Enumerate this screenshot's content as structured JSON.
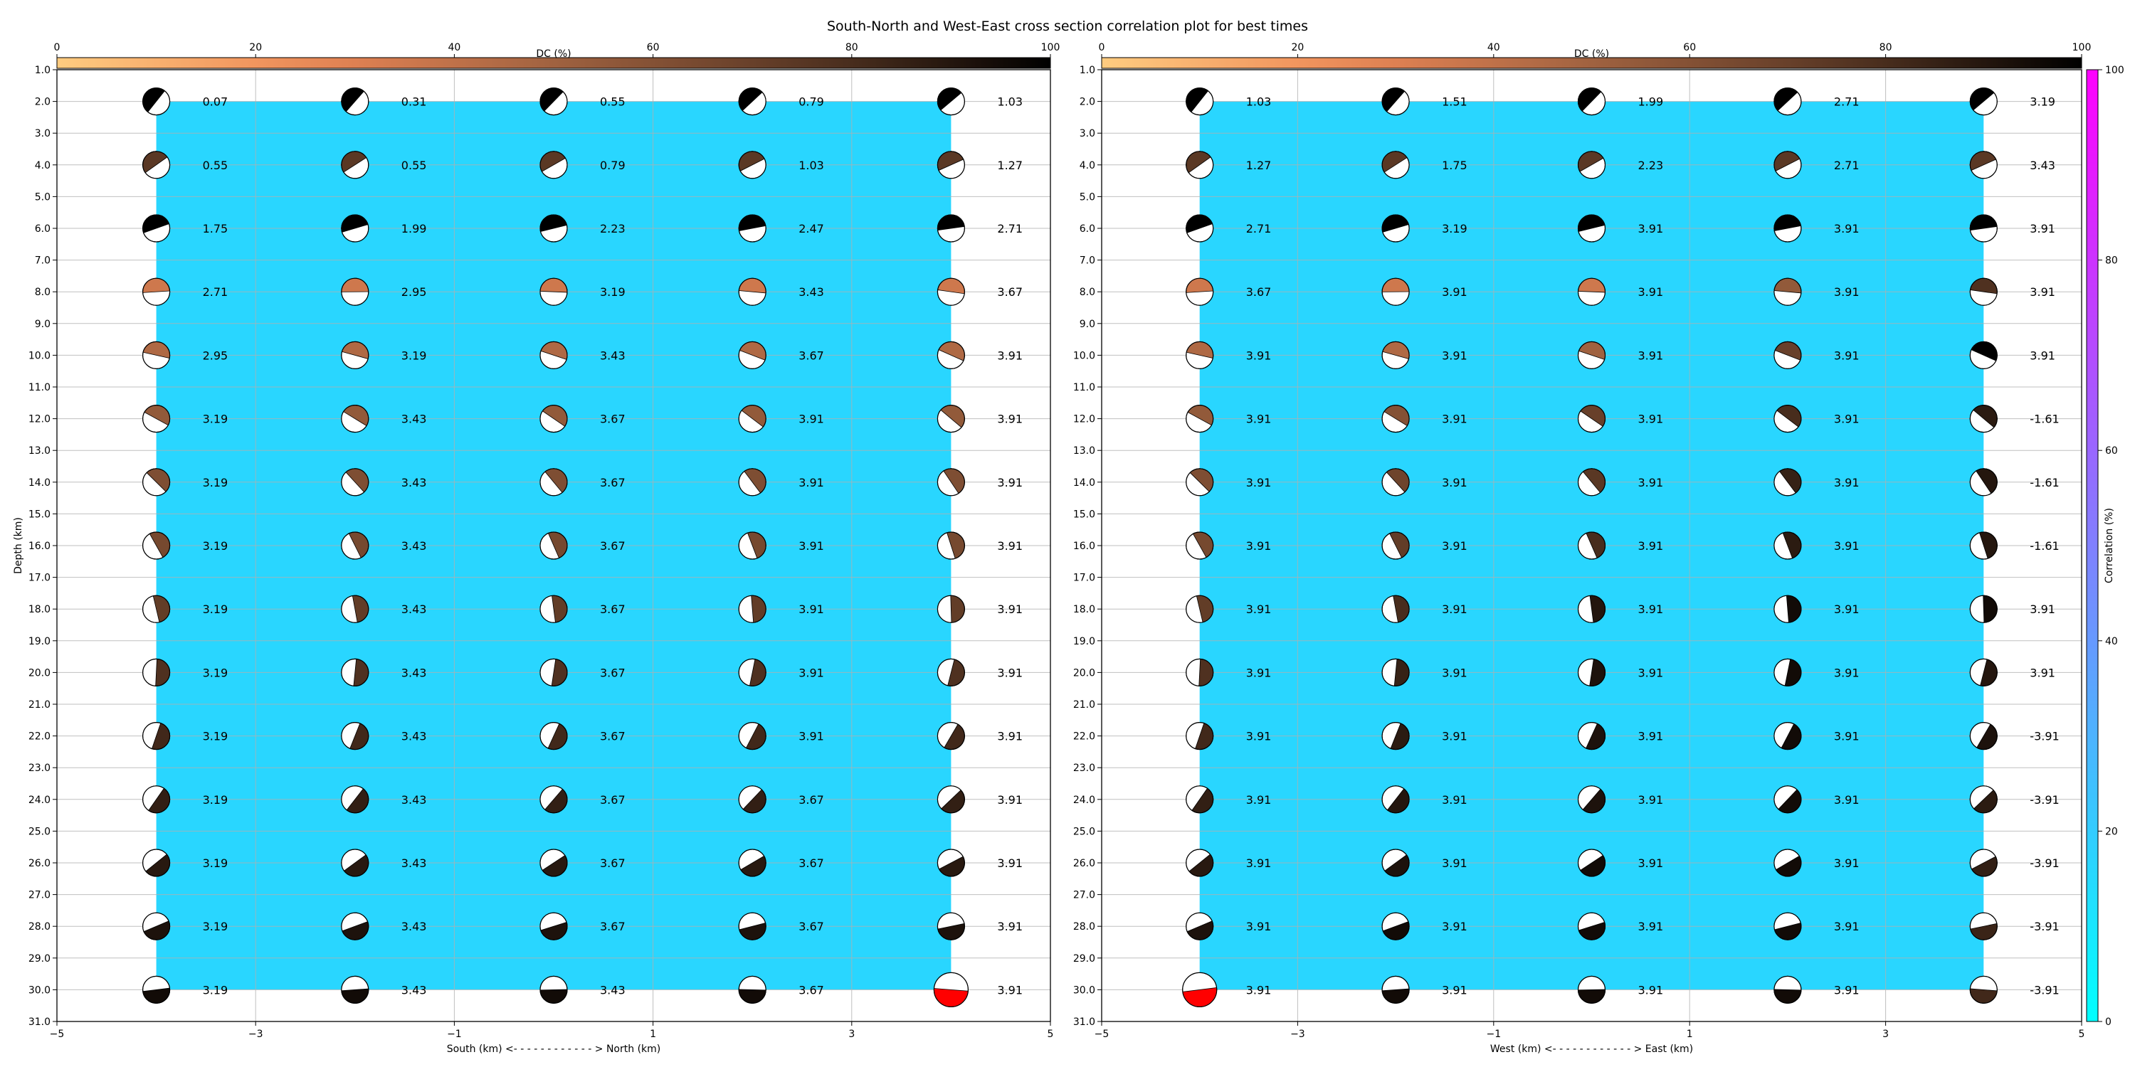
{
  "title": "South-North and West-East cross section correlation plot for best times",
  "colors": {
    "correlation_fill": "#29d6ff",
    "best_solution": "#ff0000",
    "grid": "#b0b0b0"
  },
  "chart_data": [
    {
      "type": "scatter",
      "name": "south-north",
      "xlabel": "South (km) <- - - - - - - - - - - - > North (km)",
      "ylabel": "Depth (km)",
      "xlim": [
        -5,
        5
      ],
      "ylim": [
        31,
        1
      ],
      "x_ticks": [
        "−5",
        "−3",
        "−1",
        "1",
        "3",
        "5"
      ],
      "y_ticks": [
        "1.0",
        "2.0",
        "3.0",
        "4.0",
        "5.0",
        "6.0",
        "7.0",
        "8.0",
        "9.0",
        "10.0",
        "11.0",
        "12.0",
        "13.0",
        "14.0",
        "15.0",
        "16.0",
        "17.0",
        "18.0",
        "19.0",
        "20.0",
        "21.0",
        "22.0",
        "23.0",
        "24.0",
        "25.0",
        "26.0",
        "27.0",
        "28.0",
        "29.0",
        "30.0",
        "31.0"
      ],
      "grid": true,
      "x": [
        -4,
        -2,
        0,
        2,
        4
      ],
      "depths": [
        2,
        4,
        6,
        8,
        10,
        12,
        14,
        16,
        18,
        20,
        22,
        24,
        26,
        28,
        30
      ],
      "correlation_percent": 20,
      "best_solution": {
        "x": 4,
        "depth": 30
      },
      "time_labels": [
        [
          "0.07",
          "0.31",
          "0.55",
          "0.79",
          "1.03"
        ],
        [
          "0.55",
          "0.55",
          "0.79",
          "1.03",
          "1.27"
        ],
        [
          "1.75",
          "1.99",
          "2.23",
          "2.47",
          "2.71"
        ],
        [
          "2.71",
          "2.95",
          "3.19",
          "3.43",
          "3.67"
        ],
        [
          "2.95",
          "3.19",
          "3.43",
          "3.67",
          "3.91"
        ],
        [
          "3.19",
          "3.43",
          "3.67",
          "3.91",
          "3.91"
        ],
        [
          "3.19",
          "3.43",
          "3.67",
          "3.91",
          "3.91"
        ],
        [
          "3.19",
          "3.43",
          "3.67",
          "3.91",
          "3.91"
        ],
        [
          "3.19",
          "3.43",
          "3.67",
          "3.91",
          "3.91"
        ],
        [
          "3.19",
          "3.43",
          "3.67",
          "3.91",
          "3.91"
        ],
        [
          "3.19",
          "3.43",
          "3.67",
          "3.91",
          "3.91"
        ],
        [
          "3.19",
          "3.43",
          "3.67",
          "3.67",
          "3.91"
        ],
        [
          "3.19",
          "3.43",
          "3.67",
          "3.67",
          "3.91"
        ],
        [
          "3.19",
          "3.43",
          "3.67",
          "3.67",
          "3.91"
        ],
        [
          "3.19",
          "3.43",
          "3.43",
          "3.67",
          "3.91"
        ]
      ],
      "dc_percent": [
        [
          100,
          100,
          100,
          100,
          100
        ],
        [
          75,
          75,
          75,
          75,
          75
        ],
        [
          100,
          100,
          100,
          100,
          100
        ],
        [
          35,
          35,
          35,
          35,
          35
        ],
        [
          45,
          45,
          45,
          45,
          45
        ],
        [
          55,
          55,
          55,
          55,
          55
        ],
        [
          62,
          62,
          62,
          62,
          62
        ],
        [
          65,
          65,
          65,
          65,
          65
        ],
        [
          72,
          72,
          72,
          72,
          72
        ],
        [
          78,
          78,
          78,
          78,
          78
        ],
        [
          82,
          82,
          82,
          82,
          82
        ],
        [
          86,
          86,
          86,
          86,
          86
        ],
        [
          89,
          89,
          89,
          89,
          89
        ],
        [
          92,
          92,
          92,
          92,
          92
        ],
        [
          95,
          95,
          95,
          95,
          0
        ]
      ],
      "dc_colorbar": {
        "label": "DC (%)",
        "ticks": [
          "0",
          "20",
          "40",
          "60",
          "80",
          "100"
        ],
        "range": [
          0,
          100
        ]
      }
    },
    {
      "type": "scatter",
      "name": "west-east",
      "xlabel": "West (km) <- - - - - - - - - - - - > East (km)",
      "xlim": [
        -5,
        5
      ],
      "ylim": [
        31,
        1
      ],
      "x_ticks": [
        "−5",
        "−3",
        "−1",
        "1",
        "3",
        "5"
      ],
      "y_ticks": [
        "1.0",
        "2.0",
        "3.0",
        "4.0",
        "5.0",
        "6.0",
        "7.0",
        "8.0",
        "9.0",
        "10.0",
        "11.0",
        "12.0",
        "13.0",
        "14.0",
        "15.0",
        "16.0",
        "17.0",
        "18.0",
        "19.0",
        "20.0",
        "21.0",
        "22.0",
        "23.0",
        "24.0",
        "25.0",
        "26.0",
        "27.0",
        "28.0",
        "29.0",
        "30.0",
        "31.0"
      ],
      "grid": true,
      "x": [
        -4,
        -2,
        0,
        2,
        4
      ],
      "depths": [
        2,
        4,
        6,
        8,
        10,
        12,
        14,
        16,
        18,
        20,
        22,
        24,
        26,
        28,
        30
      ],
      "correlation_percent": 20,
      "best_solution": {
        "x": -4,
        "depth": 30
      },
      "time_labels": [
        [
          "1.03",
          "1.51",
          "1.99",
          "2.71",
          "3.19"
        ],
        [
          "1.27",
          "1.75",
          "2.23",
          "2.71",
          "3.43"
        ],
        [
          "2.71",
          "3.19",
          "3.91",
          "3.91",
          "3.91"
        ],
        [
          "3.67",
          "3.91",
          "3.91",
          "3.91",
          "3.91"
        ],
        [
          "3.91",
          "3.91",
          "3.91",
          "3.91",
          "3.91"
        ],
        [
          "3.91",
          "3.91",
          "3.91",
          "3.91",
          "-1.61"
        ],
        [
          "3.91",
          "3.91",
          "3.91",
          "3.91",
          "-1.61"
        ],
        [
          "3.91",
          "3.91",
          "3.91",
          "3.91",
          "-1.61"
        ],
        [
          "3.91",
          "3.91",
          "3.91",
          "3.91",
          "3.91"
        ],
        [
          "3.91",
          "3.91",
          "3.91",
          "3.91",
          "3.91"
        ],
        [
          "3.91",
          "3.91",
          "3.91",
          "3.91",
          "-3.91"
        ],
        [
          "3.91",
          "3.91",
          "3.91",
          "3.91",
          "-3.91"
        ],
        [
          "3.91",
          "3.91",
          "3.91",
          "3.91",
          "-3.91"
        ],
        [
          "3.91",
          "3.91",
          "3.91",
          "3.91",
          "-3.91"
        ],
        [
          "3.91",
          "3.91",
          "3.91",
          "3.91",
          "-3.91"
        ]
      ],
      "dc_percent": [
        [
          100,
          100,
          100,
          100,
          100
        ],
        [
          75,
          75,
          75,
          75,
          75
        ],
        [
          100,
          100,
          100,
          100,
          100
        ],
        [
          35,
          35,
          35,
          55,
          78
        ],
        [
          45,
          45,
          50,
          70,
          100
        ],
        [
          55,
          60,
          70,
          80,
          88
        ],
        [
          62,
          68,
          75,
          85,
          90
        ],
        [
          65,
          72,
          80,
          88,
          90
        ],
        [
          72,
          80,
          90,
          95,
          95
        ],
        [
          78,
          85,
          92,
          95,
          90
        ],
        [
          82,
          88,
          92,
          95,
          92
        ],
        [
          86,
          90,
          92,
          95,
          88
        ],
        [
          89,
          92,
          95,
          95,
          86
        ],
        [
          92,
          95,
          95,
          95,
          84
        ],
        [
          0,
          95,
          95,
          95,
          82
        ]
      ],
      "dc_colorbar": {
        "label": "DC (%)",
        "ticks": [
          "0",
          "20",
          "40",
          "60",
          "80",
          "100"
        ],
        "range": [
          0,
          100
        ]
      },
      "correlation_colorbar": {
        "label": "Correlation (%)",
        "ticks": [
          "0",
          "20",
          "40",
          "60",
          "80",
          "100"
        ],
        "range": [
          0,
          100
        ]
      }
    }
  ]
}
